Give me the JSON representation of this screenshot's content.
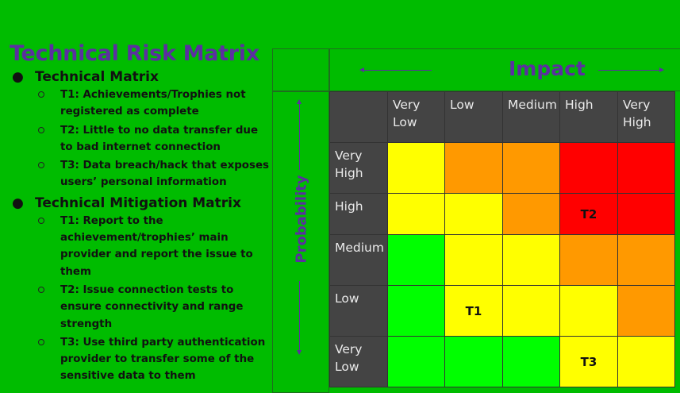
{
  "slide": {
    "title": "Technical Risk Matrix",
    "sections": [
      {
        "heading": "Technical Matrix",
        "items": [
          "T1: Achievements/Trophies not registered as complete",
          "T2: Little to no data transfer due to bad internet connection",
          "T3: Data breach/hack that exposes users’ personal information"
        ]
      },
      {
        "heading": "Technical Mitigation Matrix",
        "items": [
          "T1: Report to the achievement/trophies’ main provider and report the issue to them",
          "T2: Issue connection tests to ensure connectivity and range strength",
          "T3: Use third party authentication provider to transfer some of the sensitive data to them"
        ]
      }
    ]
  },
  "matrix": {
    "impact_label": "Impact",
    "probability_label": "Probability",
    "impact_levels": [
      "Very Low",
      "Low",
      "Medium",
      "High",
      "Very High"
    ],
    "probability_levels": [
      "Very High",
      "High",
      "Medium",
      "Low",
      "Very Low"
    ],
    "cell_colors": [
      [
        "#ffff00",
        "#ff9900",
        "#ff9900",
        "#ff0000",
        "#ff0000"
      ],
      [
        "#ffff00",
        "#ffff00",
        "#ff9900",
        "#ff0000",
        "#ff0000"
      ],
      [
        "#00ff00",
        "#ffff00",
        "#ffff00",
        "#ff9900",
        "#ff9900"
      ],
      [
        "#00ff00",
        "#ffff00",
        "#ffff00",
        "#ffff00",
        "#ff9900"
      ],
      [
        "#00ff00",
        "#00ff00",
        "#00ff00",
        "#ffff00",
        "#ffff00"
      ]
    ],
    "cell_labels": [
      [
        "",
        "",
        "",
        "",
        ""
      ],
      [
        "",
        "",
        "",
        "T2",
        ""
      ],
      [
        "",
        "",
        "",
        "",
        ""
      ],
      [
        "",
        "T1",
        "",
        "",
        ""
      ],
      [
        "",
        "",
        "",
        "T3",
        ""
      ]
    ]
  },
  "colors": {
    "background": "#00bc00",
    "title": "#5b2fa0",
    "header_cell": "#444444"
  }
}
